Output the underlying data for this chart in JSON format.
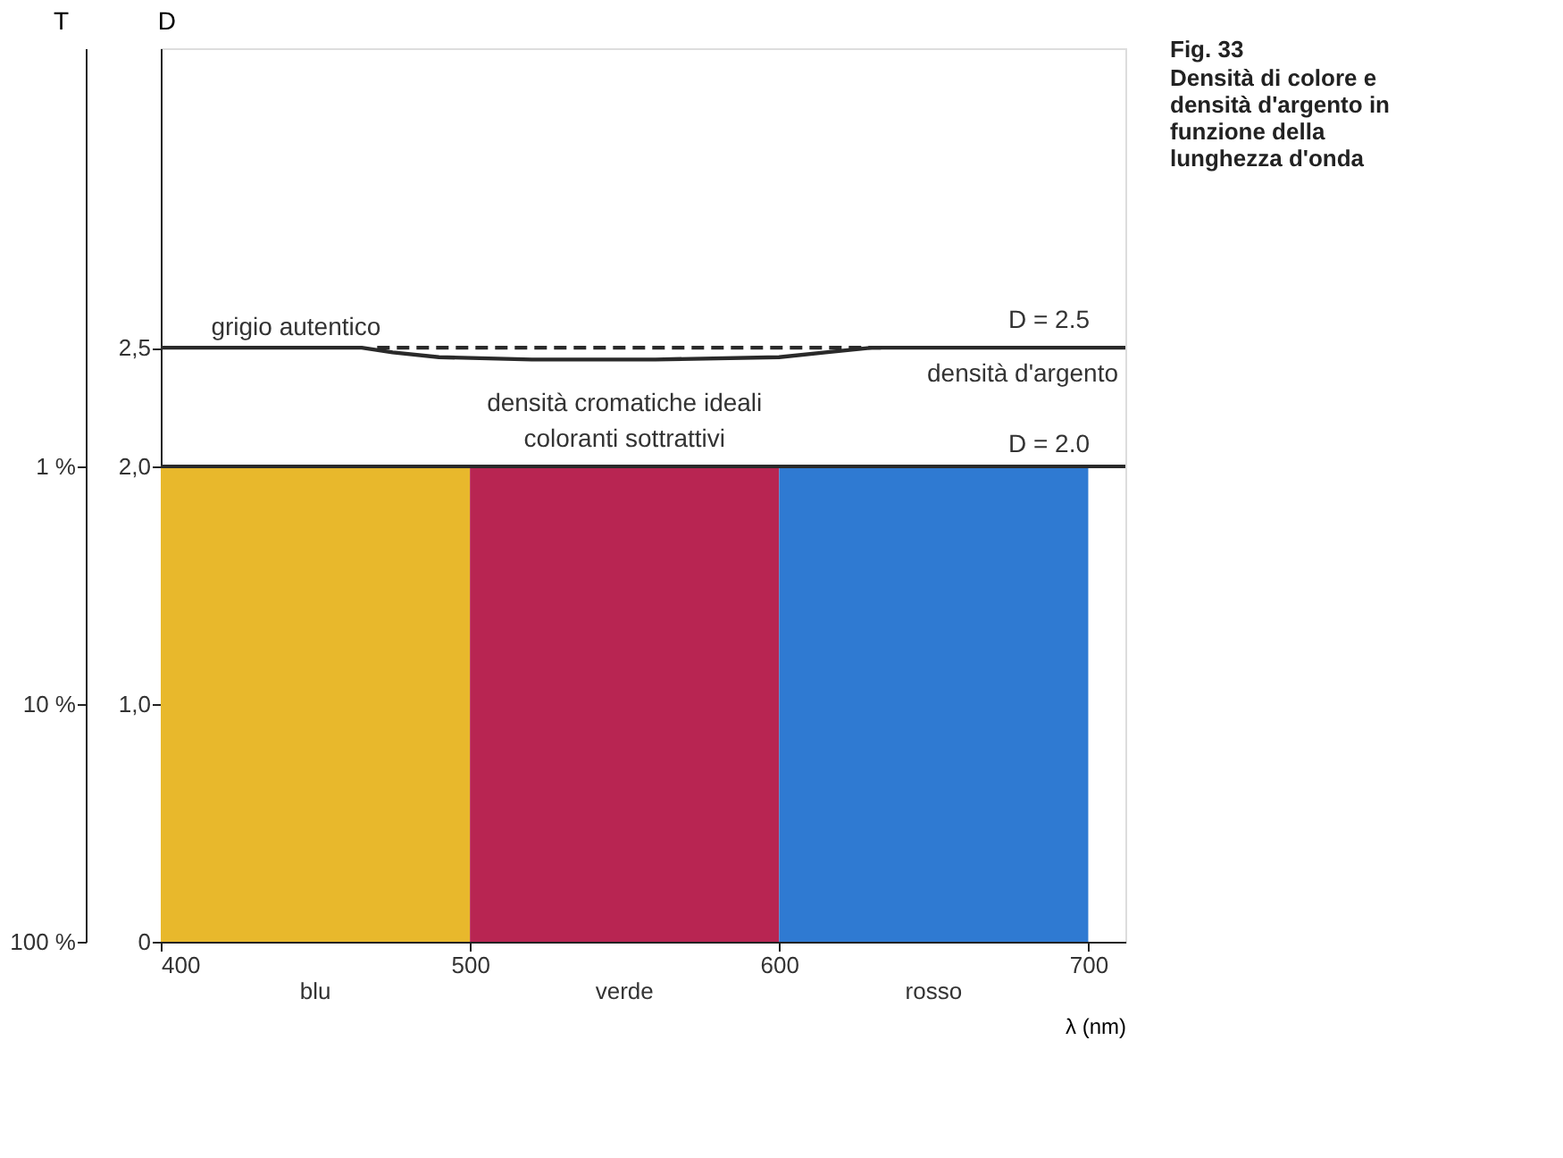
{
  "chart_data": {
    "type": "bar",
    "title": "Fig. 33",
    "subtitle": "Densità di colore e densità d'argento in funzione della lunghezza d'onda",
    "xlabel": "λ (nm)",
    "ylabel": "D",
    "y2label": "T",
    "series": [
      {
        "x": [
          450,
          550,
          650
        ],
        "values": [
          2.0,
          2.0,
          2.0
        ],
        "colors": [
          "#e8b82c",
          "#b82552",
          "#2f7ad2"
        ]
      },
      {
        "type": "line",
        "name": "densità d'argento",
        "color": "#2a2a2a",
        "line_style": "solid",
        "x": [
          400,
          465,
          475,
          490,
          520,
          560,
          600,
          615,
          630,
          640,
          712
        ],
        "values": [
          2.5,
          2.5,
          2.48,
          2.46,
          2.45,
          2.45,
          2.46,
          2.48,
          2.5,
          2.5,
          2.5
        ]
      },
      {
        "type": "line",
        "name": "grigio autentico",
        "color": "#2a2a2a",
        "line_style": "dashed",
        "x": [
          470,
          635
        ],
        "values": [
          2.5,
          2.5
        ]
      }
    ],
    "ref_lines": [
      {
        "axis": "y",
        "value": 2.0,
        "label": "D = 2.0",
        "color": "#2a2a2a"
      }
    ],
    "annotations": [
      {
        "text": "D = 2.5",
        "x": 712,
        "y": 2.5
      },
      "densità cromatiche ideali\ncoloranti sottrattivi",
      "blu",
      "verde",
      "rosso"
    ],
    "xlim": [
      400,
      712
    ],
    "xticks": [
      400,
      500,
      600,
      700
    ],
    "ylim": [
      0,
      3.76
    ],
    "yticks": [
      {
        "value": 0,
        "label": "0"
      },
      {
        "value": 1.0,
        "label": "1,0"
      },
      {
        "value": 2.0,
        "label": "2,0"
      },
      {
        "value": 2.5,
        "label": "2,5"
      }
    ],
    "y2lim": [
      100,
      0.01738
    ],
    "y2ticks": [
      {
        "value": 100,
        "label": "100 %"
      },
      {
        "value": 10,
        "label": "10 %"
      },
      {
        "value": 1,
        "label": "1 %"
      }
    ],
    "log": "y2",
    "grid": false
  }
}
